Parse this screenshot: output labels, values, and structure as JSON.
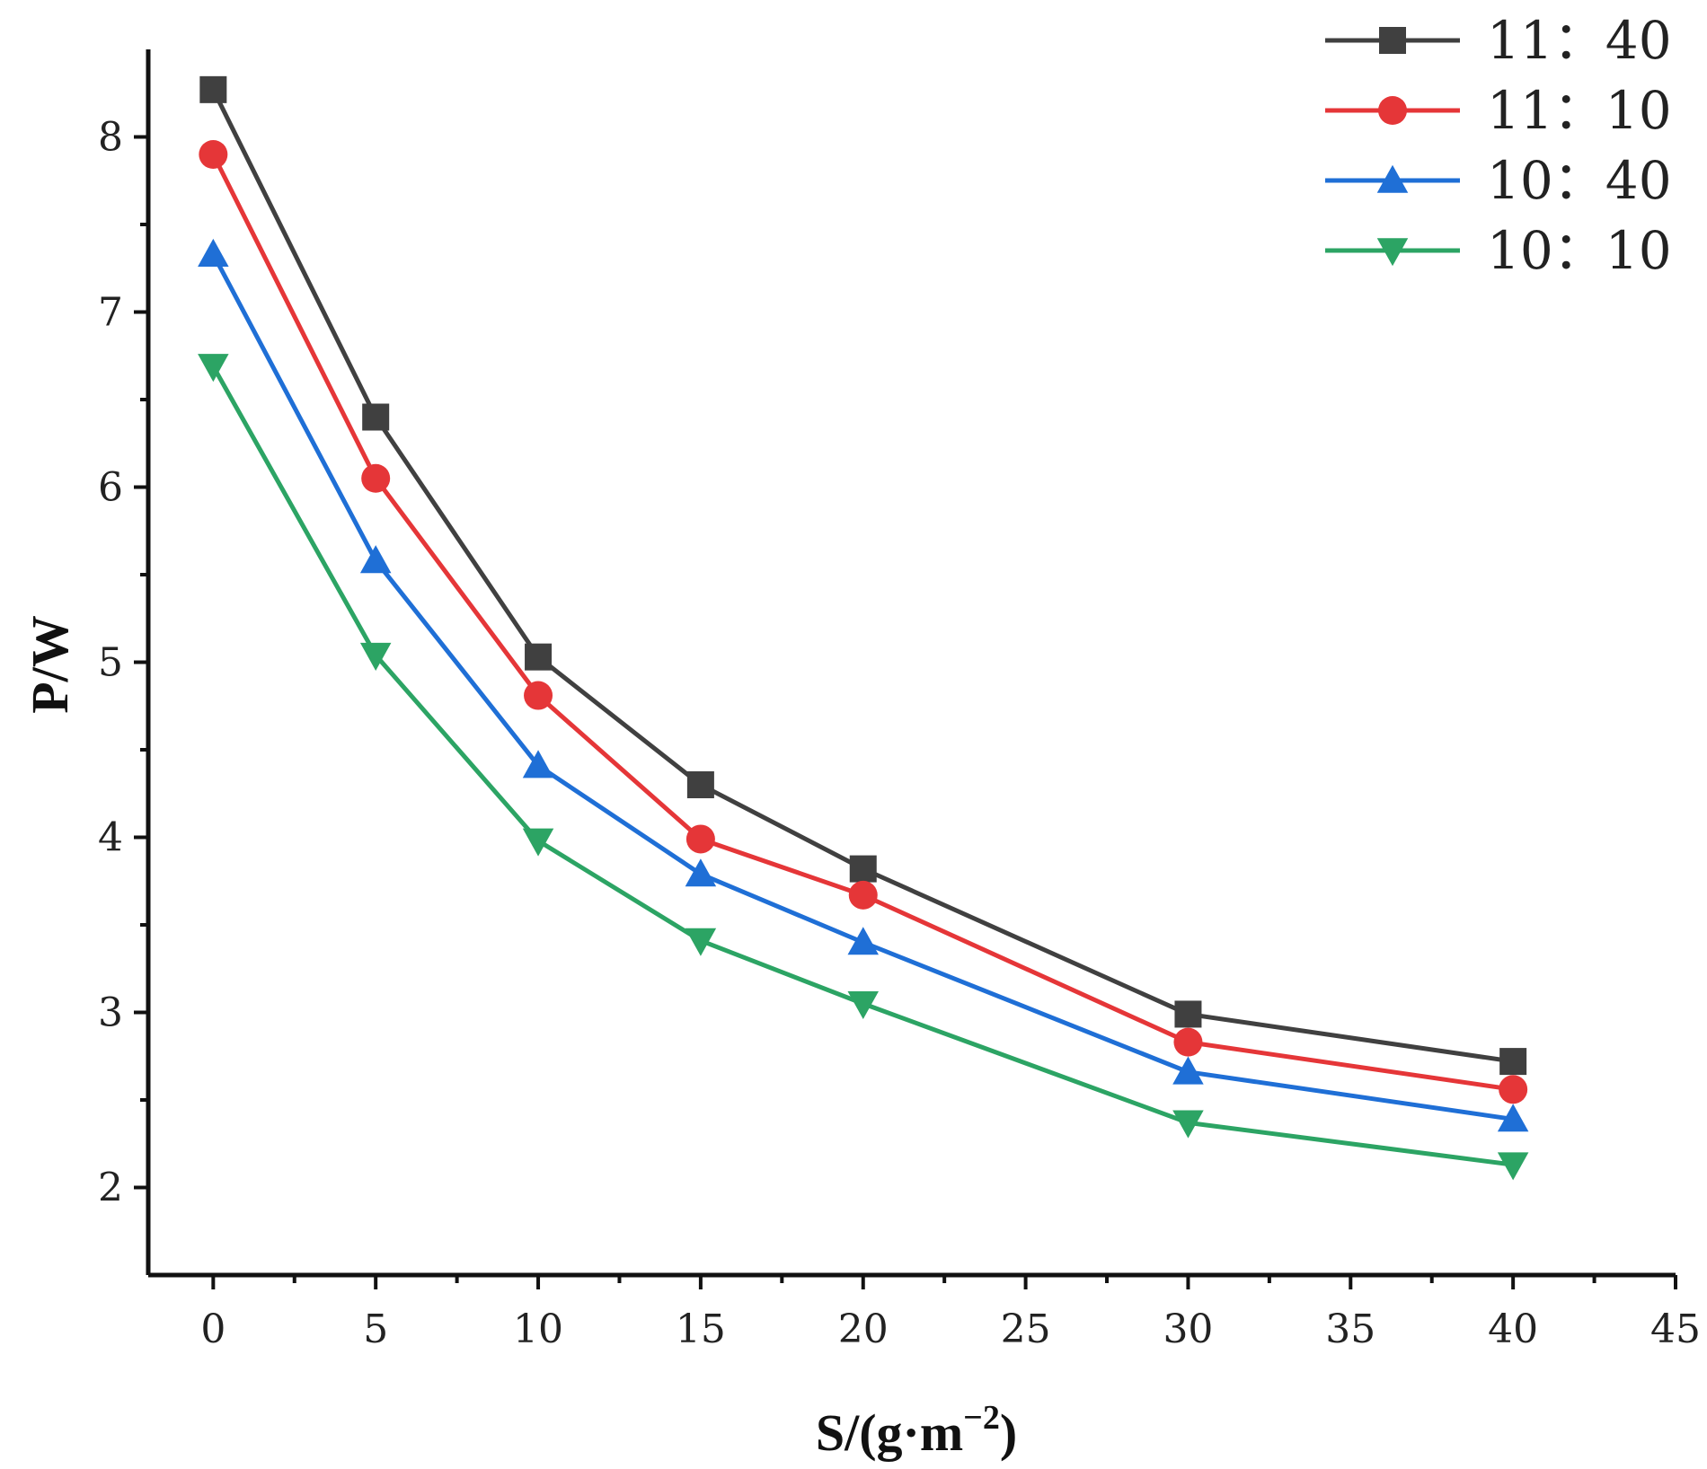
{
  "chart_data": {
    "type": "line",
    "title": "",
    "xlabel": "S/(g·m",
    "xlabel_sup": "−2",
    "xlabel_close": ")",
    "ylabel": "P/W",
    "xlim": [
      -2,
      45
    ],
    "ylim": [
      1.5,
      8.5
    ],
    "xticks": [
      0,
      5,
      10,
      15,
      20,
      25,
      30,
      35,
      40,
      45
    ],
    "xtick_labels": [
      "0",
      "5",
      "10",
      "15",
      "20",
      "25",
      "30",
      "35",
      "40",
      "45"
    ],
    "yticks": [
      2,
      3,
      4,
      5,
      6,
      7,
      8
    ],
    "ytick_labels": [
      "2",
      "3",
      "4",
      "5",
      "6",
      "7",
      "8"
    ],
    "x": [
      0,
      5,
      10,
      15,
      20,
      30,
      40
    ],
    "legend_position": "top-right",
    "series": [
      {
        "name": "11：40",
        "color": "#404040",
        "marker": "square",
        "values": [
          8.27,
          6.4,
          5.03,
          4.3,
          3.82,
          2.99,
          2.72
        ]
      },
      {
        "name": "11：10",
        "color": "#e53638",
        "marker": "circle",
        "values": [
          7.9,
          6.05,
          4.81,
          3.99,
          3.67,
          2.83,
          2.56
        ]
      },
      {
        "name": "10：40",
        "color": "#1f6fd6",
        "marker": "triangle-up",
        "values": [
          7.33,
          5.58,
          4.41,
          3.79,
          3.4,
          2.66,
          2.39
        ]
      },
      {
        "name": "10：10",
        "color": "#2ca464",
        "marker": "triangle-down",
        "values": [
          6.69,
          5.04,
          3.98,
          3.41,
          3.05,
          2.37,
          2.13
        ]
      }
    ]
  }
}
